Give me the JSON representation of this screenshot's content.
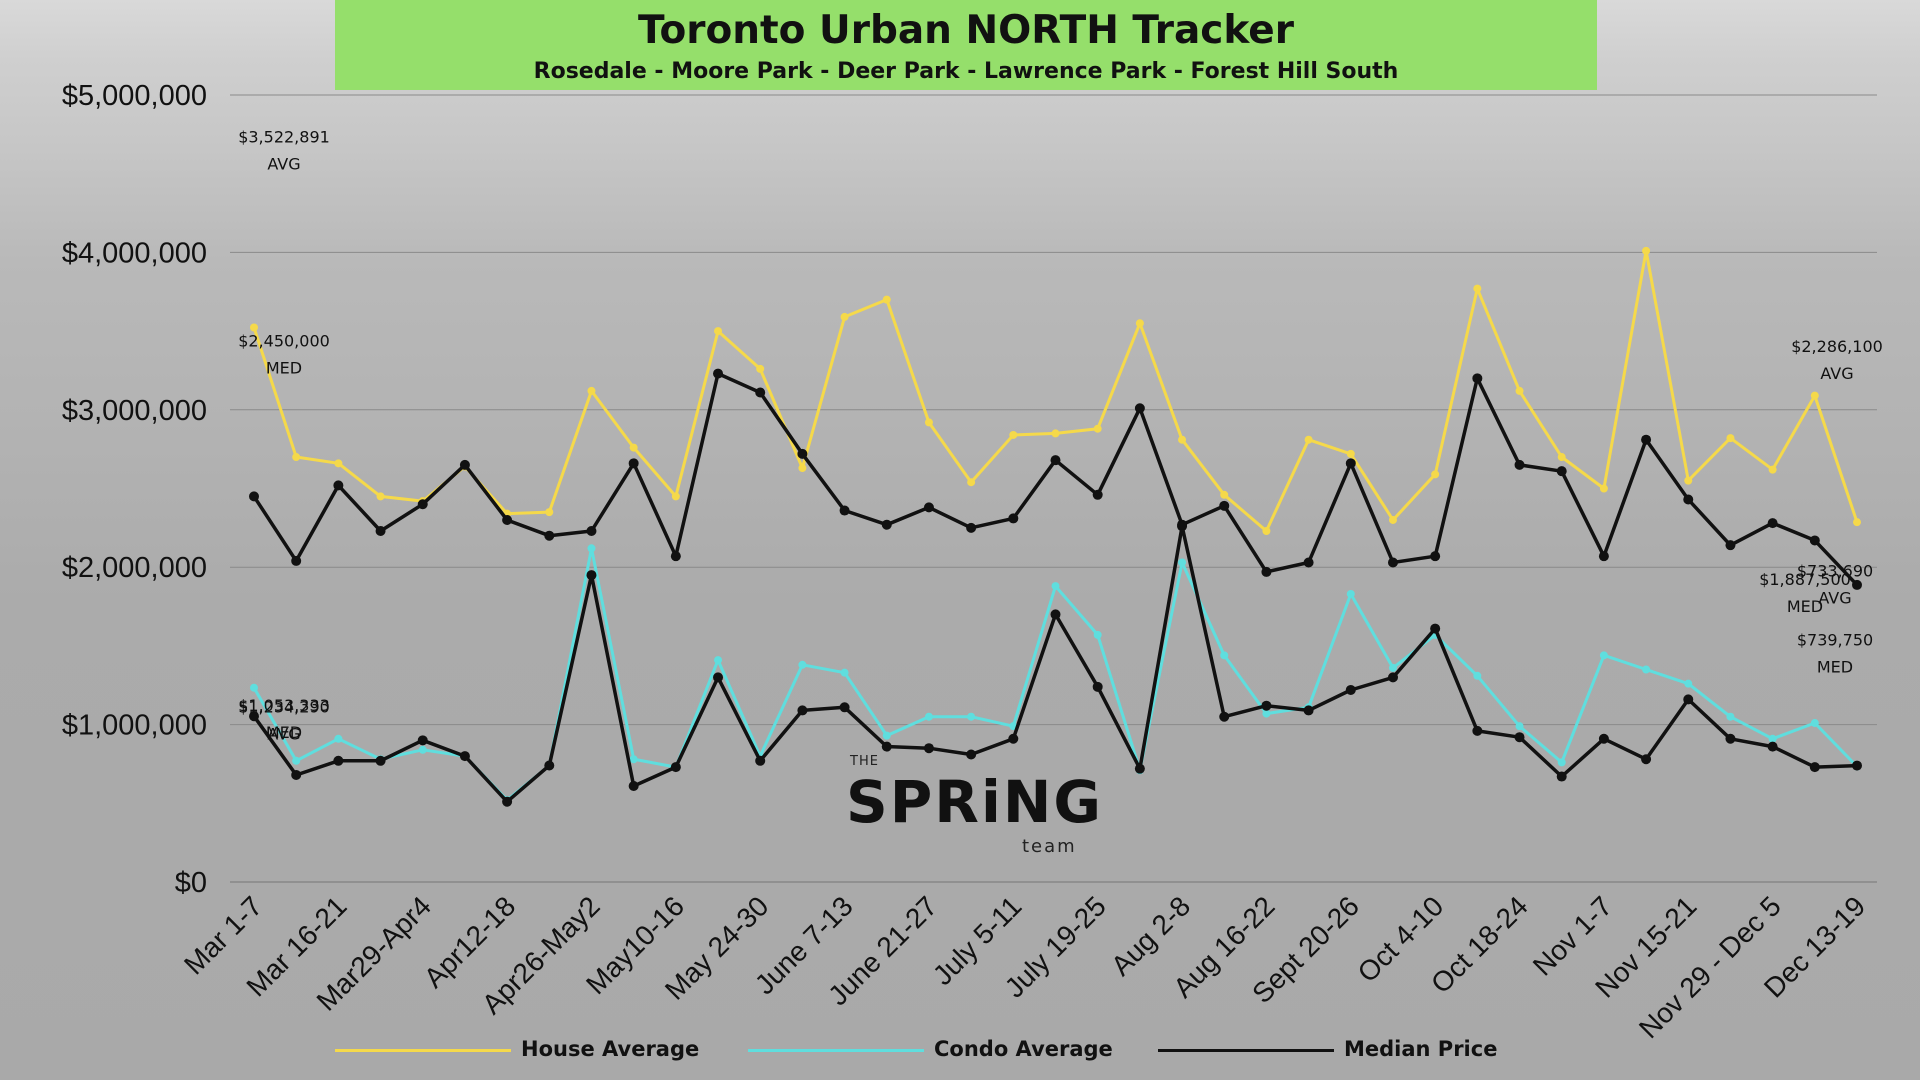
{
  "header": {
    "title": "Toronto Urban NORTH Tracker",
    "subtitle": "Rosedale - Moore Park - Deer Park - Lawrence Park - Forest Hill South"
  },
  "logo": {
    "the": "THE",
    "word": "SPRiNG",
    "team": "team"
  },
  "colors": {
    "house": "#f5d94a",
    "condo": "#5fdede",
    "median": "#111111",
    "banner": "#95df6b"
  },
  "chart_data": {
    "type": "line",
    "title": "Toronto Urban NORTH Tracker",
    "subtitle": "Rosedale - Moore Park - Deer Park - Lawrence Park - Forest Hill South",
    "ylim": [
      0,
      5000000
    ],
    "yticks": [
      0,
      1000000,
      2000000,
      3000000,
      4000000,
      5000000
    ],
    "ytick_labels": [
      "$0",
      "$1,000,000",
      "$2,000,000",
      "$3,000,000",
      "$4,000,000",
      "$5,000,000"
    ],
    "x_tick_labels": [
      "Mar 1-7",
      "Mar 16-21",
      "Mar29-Apr4",
      "Apr12-18",
      "Apr26-May2",
      "May10-16",
      "May 24-30",
      "June 7-13",
      "June 21-27",
      "July 5-11",
      "July 19-25",
      "Aug 2-8",
      "Aug 16-22",
      "Sept 20-26",
      "Oct 4-10",
      "Oct 18-24",
      "Nov 1-7",
      "Nov 15-21",
      "Nov 29 - Dec 5",
      "Dec 13-19"
    ],
    "grid": true,
    "legend_position": "bottom",
    "series": [
      {
        "name": "House Average",
        "values": [
          3522891,
          2700000,
          2660000,
          2450000,
          2420000,
          2640000,
          2340000,
          2350000,
          3120000,
          2760000,
          2450000,
          3500000,
          3260000,
          2630000,
          3590000,
          3700000,
          2920000,
          2540000,
          2840000,
          2850000,
          2880000,
          3550000,
          2810000,
          2460000,
          2230000,
          2810000,
          2720000,
          2300000,
          2590000,
          3770000,
          3120000,
          2700000,
          2500000,
          4010000,
          2550000,
          2820000,
          2620000,
          3090000,
          2286100
        ]
      },
      {
        "name": "Condo Average",
        "values": [
          1234290,
          770000,
          910000,
          780000,
          840000,
          800000,
          520000,
          740000,
          2120000,
          780000,
          730000,
          1410000,
          800000,
          1380000,
          1330000,
          930000,
          1050000,
          1050000,
          990000,
          1880000,
          1570000,
          710000,
          2030000,
          1440000,
          1070000,
          1110000,
          1830000,
          1360000,
          1570000,
          1310000,
          990000,
          760000,
          1440000,
          1350000,
          1260000,
          1050000,
          910000,
          1010000,
          733690
        ]
      },
      {
        "name": "Median Price",
        "values": [
          1053333,
          680000,
          770000,
          770000,
          900000,
          800000,
          510000,
          740000,
          1950000,
          610000,
          730000,
          1300000,
          770000,
          1090000,
          1110000,
          860000,
          850000,
          810000,
          910000,
          1700000,
          1240000,
          720000,
          2260000,
          1050000,
          1120000,
          1090000,
          1220000,
          1300000,
          1610000,
          960000,
          920000,
          670000,
          910000,
          780000,
          1160000,
          910000,
          860000,
          730000,
          739750
        ]
      },
      {
        "name": "Median Price",
        "values": [
          2450000,
          2040000,
          2520000,
          2230000,
          2400000,
          2650000,
          2300000,
          2200000,
          2230000,
          2660000,
          2070000,
          3230000,
          3110000,
          2720000,
          2360000,
          2270000,
          2380000,
          2250000,
          2310000,
          2680000,
          2460000,
          3010000,
          2270000,
          2390000,
          1970000,
          2030000,
          2660000,
          2030000,
          2070000,
          3200000,
          2650000,
          2610000,
          2070000,
          2810000,
          2430000,
          2140000,
          2280000,
          2170000,
          1887500
        ]
      }
    ],
    "annotations": [
      {
        "value": "$3,522,891",
        "tag": "AVG",
        "series": 0,
        "index": 0
      },
      {
        "value": "$2,450,000",
        "tag": "MED",
        "series": 3,
        "index": 0
      },
      {
        "value": "$1,234,290",
        "tag": "AVG",
        "series": 1,
        "index": 0
      },
      {
        "value": "$1,053,333",
        "tag": "MED",
        "series": 2,
        "index": 0
      },
      {
        "value": "$2,286,100",
        "tag": "AVG",
        "series": 0,
        "index": 38
      },
      {
        "value": "$1,887,500",
        "tag": "MED",
        "series": 3,
        "index": 38
      },
      {
        "value": "$733,690",
        "tag": "AVG",
        "series": 1,
        "index": 38
      },
      {
        "value": "$739,750",
        "tag": "MED",
        "series": 2,
        "index": 38
      }
    ]
  },
  "legend": [
    {
      "name": "House Average",
      "color": "#f5d94a"
    },
    {
      "name": "Condo Average",
      "color": "#5fdede"
    },
    {
      "name": "Median Price",
      "color": "#111111"
    }
  ]
}
